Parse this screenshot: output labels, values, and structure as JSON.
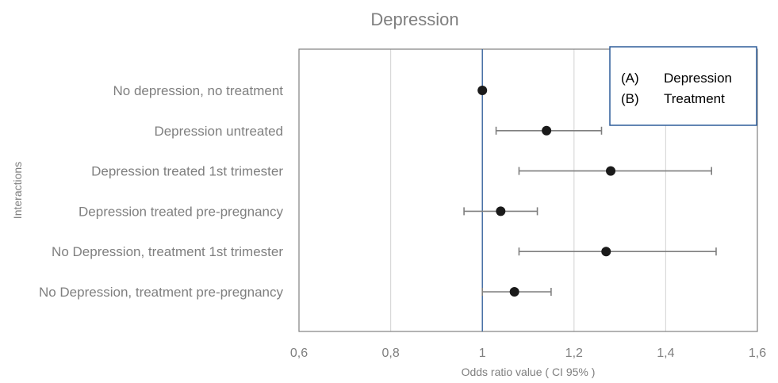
{
  "chart_data": {
    "type": "scatter",
    "title": "Depression",
    "xlabel": "Odds ratio value ( CI 95% )",
    "ylabel": "Interactions",
    "xlim": [
      0.6,
      1.6
    ],
    "x_ticks": [
      "0,6",
      "0,8",
      "1",
      "1,2",
      "1,4",
      "1,6"
    ],
    "x_tick_values": [
      0.6,
      0.8,
      1.0,
      1.2,
      1.4,
      1.6
    ],
    "reference_line": 1.0,
    "grid": true,
    "categories": [
      "No depression, no treatment",
      "Depression untreated",
      "Depression treated 1st trimester",
      "Depression treated pre-pregnancy",
      "No Depression, treatment 1st trimester",
      "No Depression, treatment pre-pregnancy"
    ],
    "series": [
      {
        "values": [
          1.0,
          1.14,
          1.28,
          1.04,
          1.27,
          1.07
        ],
        "ci_low": [
          1.0,
          1.03,
          1.08,
          0.96,
          1.08,
          1.0
        ],
        "ci_high": [
          1.0,
          1.26,
          1.5,
          1.12,
          1.51,
          1.15
        ]
      }
    ],
    "legend": {
      "position": "top-right",
      "entries": [
        {
          "key": "(A)",
          "label": "Depression"
        },
        {
          "key": "(B)",
          "label": "Treatment"
        }
      ]
    },
    "colors": {
      "point": "#1a1a1a",
      "error_bar": "#7f7f7f",
      "reference_line": "#2e5d9a",
      "grid": "#d9d9d9",
      "legend_border": "#2e5d9a",
      "text": "#7f7f7f"
    }
  }
}
